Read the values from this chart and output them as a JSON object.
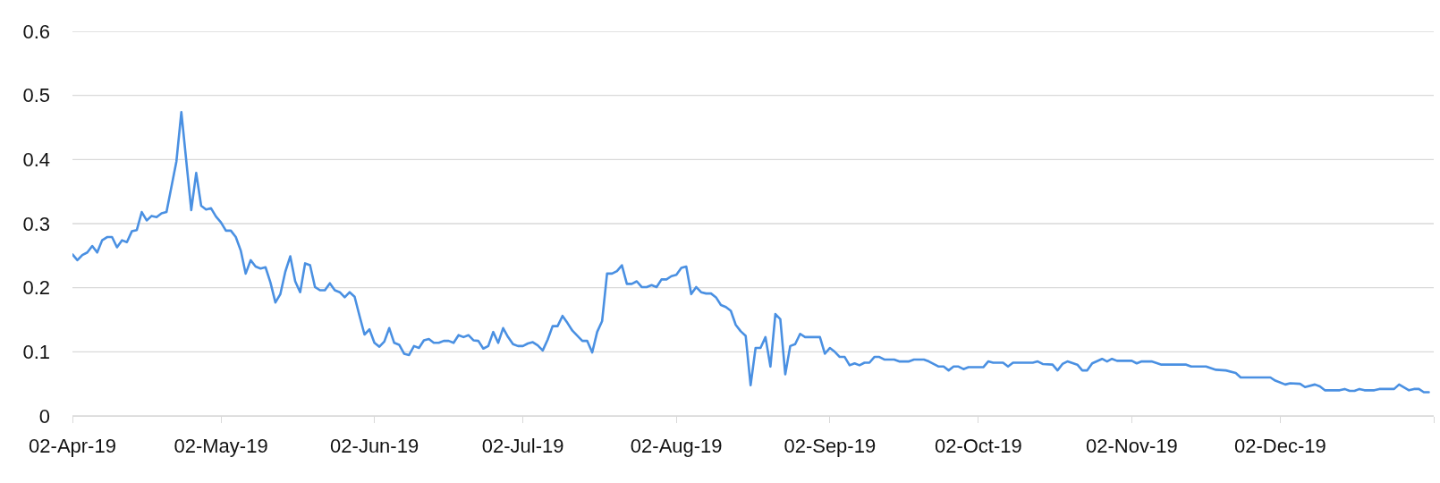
{
  "chart_data": {
    "type": "line",
    "color": "#4a90e2",
    "line_style": "solid",
    "grid": "y",
    "x": [
      "2019-04-02",
      "2019-04-03",
      "2019-04-04",
      "2019-04-05",
      "2019-04-06",
      "2019-04-07",
      "2019-04-08",
      "2019-04-09",
      "2019-04-10",
      "2019-04-11",
      "2019-04-12",
      "2019-04-13",
      "2019-04-14",
      "2019-04-15",
      "2019-04-16",
      "2019-04-17",
      "2019-04-18",
      "2019-04-19",
      "2019-04-20",
      "2019-04-21",
      "2019-04-23",
      "2019-04-24",
      "2019-04-26",
      "2019-04-27",
      "2019-04-28",
      "2019-04-29",
      "2019-04-30",
      "2019-05-01",
      "2019-05-02",
      "2019-05-03",
      "2019-05-04",
      "2019-05-05",
      "2019-05-06",
      "2019-05-07",
      "2019-05-08",
      "2019-05-09",
      "2019-05-10",
      "2019-05-11",
      "2019-05-12",
      "2019-05-13",
      "2019-05-14",
      "2019-05-15",
      "2019-05-16",
      "2019-05-17",
      "2019-05-18",
      "2019-05-19",
      "2019-05-20",
      "2019-05-21",
      "2019-05-22",
      "2019-05-23",
      "2019-05-24",
      "2019-05-25",
      "2019-05-26",
      "2019-05-27",
      "2019-05-28",
      "2019-05-29",
      "2019-05-30",
      "2019-05-31",
      "2019-06-01",
      "2019-06-02",
      "2019-06-03",
      "2019-06-04",
      "2019-06-05",
      "2019-06-06",
      "2019-06-07",
      "2019-06-08",
      "2019-06-09",
      "2019-06-10",
      "2019-06-11",
      "2019-06-12",
      "2019-06-13",
      "2019-06-14",
      "2019-06-15",
      "2019-06-16",
      "2019-06-17",
      "2019-06-18",
      "2019-06-19",
      "2019-06-20",
      "2019-06-21",
      "2019-06-22",
      "2019-06-23",
      "2019-06-24",
      "2019-06-25",
      "2019-06-26",
      "2019-06-27",
      "2019-06-28",
      "2019-06-29",
      "2019-06-30",
      "2019-07-01",
      "2019-07-02",
      "2019-07-03",
      "2019-07-04",
      "2019-07-05",
      "2019-07-06",
      "2019-07-07",
      "2019-07-08",
      "2019-07-09",
      "2019-07-10",
      "2019-07-11",
      "2019-07-12",
      "2019-07-13",
      "2019-07-14",
      "2019-07-15",
      "2019-07-16",
      "2019-07-17",
      "2019-07-18",
      "2019-07-19",
      "2019-07-20",
      "2019-07-21",
      "2019-07-22",
      "2019-07-23",
      "2019-07-24",
      "2019-07-25",
      "2019-07-26",
      "2019-07-27",
      "2019-07-28",
      "2019-07-29",
      "2019-07-30",
      "2019-07-31",
      "2019-08-01",
      "2019-08-02",
      "2019-08-03",
      "2019-08-04",
      "2019-08-05",
      "2019-08-06",
      "2019-08-07",
      "2019-08-08",
      "2019-08-09",
      "2019-08-10",
      "2019-08-11",
      "2019-08-12",
      "2019-08-13",
      "2019-08-14",
      "2019-08-15",
      "2019-08-16",
      "2019-08-17",
      "2019-08-18",
      "2019-08-19",
      "2019-08-20",
      "2019-08-21",
      "2019-08-22",
      "2019-08-23",
      "2019-08-24",
      "2019-08-25",
      "2019-08-26",
      "2019-08-27",
      "2019-08-28",
      "2019-08-31",
      "2019-09-01",
      "2019-09-02",
      "2019-09-03",
      "2019-09-04",
      "2019-09-05",
      "2019-09-06",
      "2019-09-07",
      "2019-09-08",
      "2019-09-09",
      "2019-09-10",
      "2019-09-11",
      "2019-09-12",
      "2019-09-13",
      "2019-09-15",
      "2019-09-16",
      "2019-09-18",
      "2019-09-19",
      "2019-09-21",
      "2019-09-22",
      "2019-09-24",
      "2019-09-25",
      "2019-09-26",
      "2019-09-27",
      "2019-09-28",
      "2019-09-29",
      "2019-09-30",
      "2019-10-03",
      "2019-10-04",
      "2019-10-05",
      "2019-10-07",
      "2019-10-08",
      "2019-10-09",
      "2019-10-13",
      "2019-10-14",
      "2019-10-15",
      "2019-10-17",
      "2019-10-18",
      "2019-10-19",
      "2019-10-20",
      "2019-10-22",
      "2019-10-23",
      "2019-10-24",
      "2019-10-25",
      "2019-10-27",
      "2019-10-28",
      "2019-10-29",
      "2019-10-30",
      "2019-11-02",
      "2019-11-03",
      "2019-11-04",
      "2019-11-06",
      "2019-11-08",
      "2019-11-13",
      "2019-11-14",
      "2019-11-17",
      "2019-11-19",
      "2019-11-21",
      "2019-11-23",
      "2019-11-24",
      "2019-11-30",
      "2019-12-01",
      "2019-12-03",
      "2019-12-04",
      "2019-12-06",
      "2019-12-07",
      "2019-12-09",
      "2019-12-10",
      "2019-12-11",
      "2019-12-14",
      "2019-12-15",
      "2019-12-16",
      "2019-12-17",
      "2019-12-18",
      "2019-12-19",
      "2019-12-21",
      "2019-12-22",
      "2019-12-25",
      "2019-12-26",
      "2019-12-28",
      "2019-12-29",
      "2019-12-30",
      "2019-12-31",
      "2020-01-01"
    ],
    "values": [
      0.252,
      0.243,
      0.251,
      0.255,
      0.265,
      0.255,
      0.274,
      0.279,
      0.279,
      0.263,
      0.274,
      0.271,
      0.288,
      0.29,
      0.318,
      0.305,
      0.312,
      0.31,
      0.316,
      0.318,
      0.397,
      0.474,
      0.321,
      0.379,
      0.328,
      0.322,
      0.324,
      0.311,
      0.302,
      0.289,
      0.289,
      0.279,
      0.258,
      0.222,
      0.243,
      0.233,
      0.23,
      0.232,
      0.208,
      0.177,
      0.19,
      0.225,
      0.249,
      0.21,
      0.193,
      0.238,
      0.235,
      0.201,
      0.196,
      0.196,
      0.207,
      0.196,
      0.193,
      0.185,
      0.193,
      0.186,
      0.156,
      0.127,
      0.135,
      0.114,
      0.108,
      0.116,
      0.137,
      0.114,
      0.111,
      0.097,
      0.095,
      0.109,
      0.106,
      0.118,
      0.12,
      0.114,
      0.114,
      0.117,
      0.117,
      0.114,
      0.126,
      0.123,
      0.126,
      0.118,
      0.117,
      0.105,
      0.109,
      0.131,
      0.114,
      0.137,
      0.123,
      0.112,
      0.109,
      0.109,
      0.113,
      0.115,
      0.11,
      0.102,
      0.119,
      0.14,
      0.14,
      0.156,
      0.145,
      0.133,
      0.125,
      0.117,
      0.117,
      0.099,
      0.131,
      0.148,
      0.222,
      0.222,
      0.226,
      0.235,
      0.206,
      0.206,
      0.21,
      0.201,
      0.201,
      0.204,
      0.201,
      0.213,
      0.213,
      0.218,
      0.22,
      0.231,
      0.233,
      0.19,
      0.201,
      0.193,
      0.191,
      0.191,
      0.185,
      0.173,
      0.17,
      0.164,
      0.142,
      0.132,
      0.125,
      0.048,
      0.106,
      0.106,
      0.123,
      0.077,
      0.159,
      0.151,
      0.065,
      0.109,
      0.112,
      0.128,
      0.123,
      0.123,
      0.097,
      0.106,
      0.1,
      0.092,
      0.092,
      0.079,
      0.082,
      0.079,
      0.083,
      0.083,
      0.092,
      0.092,
      0.088,
      0.088,
      0.085,
      0.085,
      0.088,
      0.088,
      0.085,
      0.077,
      0.077,
      0.071,
      0.077,
      0.077,
      0.073,
      0.076,
      0.076,
      0.085,
      0.083,
      0.083,
      0.077,
      0.083,
      0.083,
      0.085,
      0.081,
      0.08,
      0.071,
      0.081,
      0.085,
      0.08,
      0.071,
      0.071,
      0.082,
      0.089,
      0.085,
      0.089,
      0.086,
      0.086,
      0.082,
      0.085,
      0.085,
      0.08,
      0.08,
      0.077,
      0.077,
      0.072,
      0.071,
      0.067,
      0.06,
      0.06,
      0.055,
      0.049,
      0.051,
      0.05,
      0.045,
      0.049,
      0.046,
      0.04,
      0.04,
      0.042,
      0.039,
      0.039,
      0.042,
      0.04,
      0.04,
      0.042,
      0.042,
      0.049,
      0.04,
      0.042,
      0.042,
      0.037,
      0.037
    ],
    "xlim": [
      "2019-04-02",
      "2020-01-02"
    ],
    "xticks": [
      {
        "value": "2019-04-02",
        "label": "02-Apr-19"
      },
      {
        "value": "2019-05-02",
        "label": "02-May-19"
      },
      {
        "value": "2019-06-02",
        "label": "02-Jun-19"
      },
      {
        "value": "2019-07-02",
        "label": "02-Jul-19"
      },
      {
        "value": "2019-08-02",
        "label": "02-Aug-19"
      },
      {
        "value": "2019-09-02",
        "label": "02-Sep-19"
      },
      {
        "value": "2019-10-02",
        "label": "02-Oct-19"
      },
      {
        "value": "2019-11-02",
        "label": "02-Nov-19"
      },
      {
        "value": "2019-12-02",
        "label": "02-Dec-19"
      },
      {
        "value": "2020-01-02",
        "label": null
      }
    ],
    "ylim": [
      0,
      0.6
    ],
    "yticks": [
      0,
      0.1,
      0.2,
      0.3,
      0.4,
      0.5,
      0.6
    ]
  }
}
